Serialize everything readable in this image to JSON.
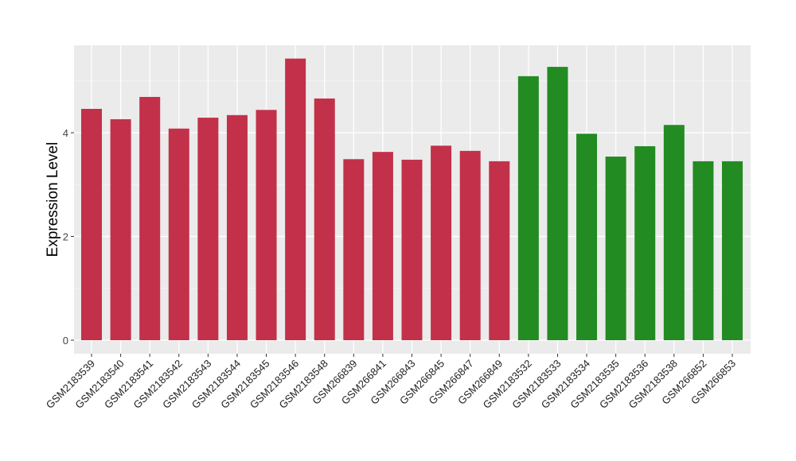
{
  "chart_data": {
    "type": "bar",
    "title": "",
    "xlabel": "",
    "ylabel": "Expression Level",
    "ylim": [
      0,
      5.7
    ],
    "yticks": [
      0,
      2,
      4
    ],
    "grid": true,
    "categories": [
      "GSM2183539",
      "GSM2183540",
      "GSM2183541",
      "GSM2183542",
      "GSM2183543",
      "GSM2183544",
      "GSM2183545",
      "GSM2183546",
      "GSM2183548",
      "GSM266839",
      "GSM266841",
      "GSM266843",
      "GSM266845",
      "GSM266847",
      "GSM266849",
      "GSM2183532",
      "GSM2183533",
      "GSM2183534",
      "GSM2183535",
      "GSM2183536",
      "GSM2183538",
      "GSM266852",
      "GSM266853"
    ],
    "values": [
      4.46,
      4.26,
      4.69,
      4.08,
      4.29,
      4.34,
      4.44,
      5.43,
      4.66,
      3.49,
      3.63,
      3.48,
      3.75,
      3.65,
      3.45,
      5.09,
      5.27,
      3.98,
      3.54,
      3.74,
      4.15,
      3.45,
      3.45
    ],
    "groups": [
      "a",
      "a",
      "a",
      "a",
      "a",
      "a",
      "a",
      "a",
      "a",
      "a",
      "a",
      "a",
      "a",
      "a",
      "a",
      "b",
      "b",
      "b",
      "b",
      "b",
      "b",
      "b",
      "b"
    ],
    "colors": {
      "a": "#C3304A",
      "b": "#228B22"
    }
  }
}
